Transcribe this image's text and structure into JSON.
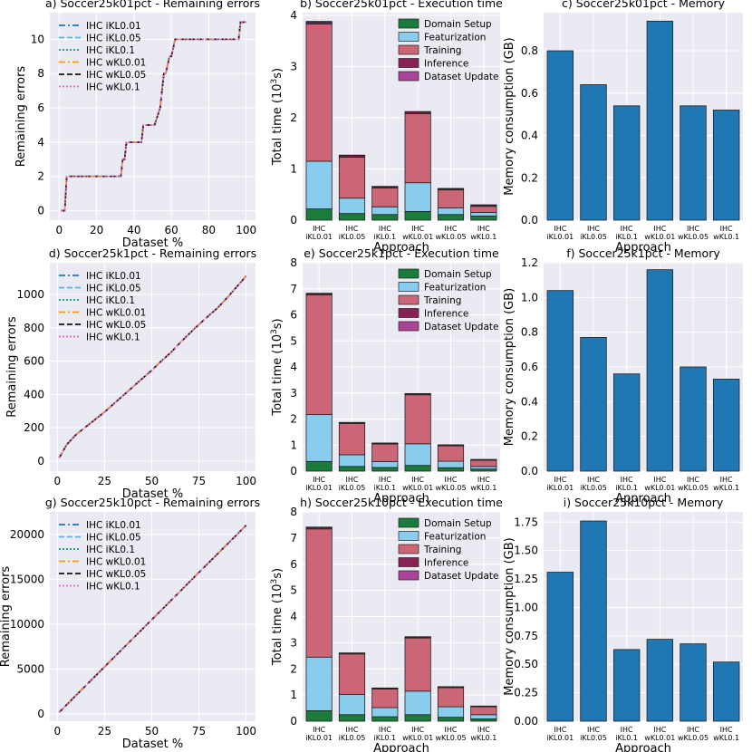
{
  "colors": {
    "panel_bg": "#EAEAF2",
    "grid": "#FFFFFF",
    "bar_memory": "#1F77B4",
    "stack": [
      "#1A7B3A",
      "#88CCEE",
      "#CC6677",
      "#882255",
      "#AA4499"
    ],
    "lines": [
      "#1F77B4",
      "#56B4E9",
      "#009E73",
      "#FF9900",
      "#111111",
      "#EE66BB"
    ]
  },
  "line_series_names": [
    "IHC iKL0.01",
    "IHC iKL0.05",
    "IHC iKL0.1",
    "IHC wKL0.01",
    "IHC wKL0.05",
    "IHC wKL0.1"
  ],
  "stack_legend": [
    "Domain Setup",
    "Featurization",
    "Training",
    "Inference",
    "Dataset Update"
  ],
  "approach_labels": [
    [
      "IHC",
      "iKL0.01"
    ],
    [
      "IHC",
      "iKL0.05"
    ],
    [
      "IHC",
      "iKL0.1"
    ],
    [
      "IHC",
      "wKL0.01"
    ],
    [
      "IHC",
      "wKL0.05"
    ],
    [
      "IHC",
      "wKL0.1"
    ]
  ],
  "chart_data": [
    {
      "type": "line",
      "title": "a) Soccer25k01pct - Remaining errors",
      "xlabel": "Dataset %",
      "ylabel": "Remaining errors",
      "xlim": [
        -5,
        105
      ],
      "ylim": [
        -0.55,
        11.55
      ],
      "xticks": [
        0,
        20,
        40,
        60,
        80,
        100
      ],
      "yticks": [
        0,
        2,
        4,
        6,
        8,
        10
      ],
      "x": [
        1,
        3,
        4,
        32,
        33,
        34,
        35,
        36,
        44,
        45,
        50,
        51,
        54,
        55,
        56,
        57,
        59,
        60,
        61,
        62,
        96,
        97,
        100
      ],
      "y": [
        0,
        0,
        2,
        2,
        2,
        3,
        3,
        4,
        4,
        5,
        5,
        5,
        6,
        7,
        8,
        8,
        9,
        9,
        9.5,
        10,
        10,
        11,
        11
      ]
    },
    {
      "type": "line",
      "title": "d) Soccer25k1pct - Remaining errors",
      "xlabel": "Dataset %",
      "ylabel": "Remaining errors",
      "xlim": [
        -4,
        105
      ],
      "ylim": [
        -60,
        1190
      ],
      "xticks": [
        0,
        25,
        50,
        75,
        100
      ],
      "yticks": [
        0,
        200,
        400,
        600,
        800,
        1000
      ],
      "x": [
        1,
        5,
        10,
        15,
        20,
        25,
        30,
        35,
        40,
        45,
        50,
        55,
        60,
        65,
        70,
        75,
        80,
        85,
        90,
        95,
        100
      ],
      "y": [
        20,
        100,
        160,
        205,
        250,
        295,
        345,
        395,
        445,
        495,
        545,
        600,
        650,
        710,
        765,
        820,
        870,
        920,
        980,
        1045,
        1110
      ]
    },
    {
      "type": "line",
      "title": "g) Soccer25k10pct - Remaining errors",
      "xlabel": "Dataset %",
      "ylabel": "Remaining errors",
      "xlim": [
        -4,
        105
      ],
      "ylim": [
        -800,
        22500
      ],
      "xticks": [
        0,
        25,
        50,
        75,
        100
      ],
      "yticks": [
        0,
        5000,
        10000,
        15000,
        20000
      ],
      "x": [
        1,
        10,
        20,
        30,
        40,
        50,
        60,
        70,
        80,
        90,
        100
      ],
      "y": [
        200,
        2100,
        4200,
        6300,
        8400,
        10500,
        12600,
        14700,
        16800,
        18900,
        21000
      ]
    },
    {
      "type": "bar",
      "stacked": true,
      "title": "b) Soccer25k01pct - Execution time",
      "xlabel": "Approach",
      "ylabel": "Total time (10³s)",
      "ylim": [
        0,
        4.05
      ],
      "yticks": [
        0,
        1,
        2,
        3,
        4
      ],
      "series": [
        {
          "name": "Domain Setup",
          "values": [
            0.22,
            0.13,
            0.11,
            0.17,
            0.11,
            0.08
          ]
        },
        {
          "name": "Featurization",
          "values": [
            0.93,
            0.3,
            0.15,
            0.56,
            0.13,
            0.07
          ]
        },
        {
          "name": "Training",
          "values": [
            2.68,
            0.8,
            0.37,
            1.35,
            0.35,
            0.12
          ]
        },
        {
          "name": "Inference",
          "values": [
            0.04,
            0.03,
            0.02,
            0.03,
            0.02,
            0.02
          ]
        },
        {
          "name": "Dataset Update",
          "values": [
            0.01,
            0.01,
            0.01,
            0.01,
            0.01,
            0.01
          ]
        }
      ]
    },
    {
      "type": "bar",
      "stacked": true,
      "title": "e) Soccer25k1pct - Execution time",
      "xlabel": "Approach",
      "ylabel": "Total time (10³s)",
      "ylim": [
        0,
        8
      ],
      "yticks": [
        0,
        1,
        2,
        3,
        4,
        5,
        6,
        7,
        8
      ],
      "series": [
        {
          "name": "Domain Setup",
          "values": [
            0.37,
            0.18,
            0.14,
            0.22,
            0.13,
            0.08
          ]
        },
        {
          "name": "Featurization",
          "values": [
            1.8,
            0.45,
            0.23,
            0.83,
            0.25,
            0.1
          ]
        },
        {
          "name": "Training",
          "values": [
            4.6,
            1.2,
            0.67,
            1.88,
            0.59,
            0.24
          ]
        },
        {
          "name": "Inference",
          "values": [
            0.05,
            0.03,
            0.03,
            0.04,
            0.03,
            0.02
          ]
        },
        {
          "name": "Dataset Update",
          "values": [
            0.01,
            0.01,
            0.01,
            0.01,
            0.01,
            0.01
          ]
        }
      ]
    },
    {
      "type": "bar",
      "stacked": true,
      "title": "h) Soccer25k10pct - Execution time",
      "xlabel": "Approach",
      "ylabel": "Total time (10³s)",
      "ylim": [
        0,
        8
      ],
      "yticks": [
        0,
        1,
        2,
        3,
        4,
        5,
        6,
        7,
        8
      ],
      "series": [
        {
          "name": "Domain Setup",
          "values": [
            0.4,
            0.25,
            0.17,
            0.25,
            0.15,
            0.09
          ]
        },
        {
          "name": "Featurization",
          "values": [
            2.05,
            0.77,
            0.35,
            0.9,
            0.4,
            0.16
          ]
        },
        {
          "name": "Training",
          "values": [
            4.9,
            1.55,
            0.71,
            2.03,
            0.73,
            0.3
          ]
        },
        {
          "name": "Inference",
          "values": [
            0.06,
            0.03,
            0.03,
            0.04,
            0.03,
            0.02
          ]
        },
        {
          "name": "Dataset Update",
          "values": [
            0.01,
            0.01,
            0.01,
            0.01,
            0.01,
            0.01
          ]
        }
      ]
    },
    {
      "type": "bar",
      "title": "c) Soccer25k01pct - Memory",
      "xlabel": "Approach",
      "ylabel": "Memory consumption (GB)",
      "ylim": [
        0,
        0.98
      ],
      "yticks": [
        0.0,
        0.2,
        0.4,
        0.6,
        0.8
      ],
      "tick_decimals": 1,
      "values": [
        0.8,
        0.64,
        0.54,
        0.94,
        0.54,
        0.52
      ]
    },
    {
      "type": "bar",
      "title": "f) Soccer25k1pct - Memory",
      "xlabel": "Approach",
      "ylabel": "Memory consumption (GB)",
      "ylim": [
        0,
        1.2
      ],
      "yticks": [
        0.0,
        0.2,
        0.4,
        0.6,
        0.8,
        1.0,
        1.2
      ],
      "tick_decimals": 1,
      "values": [
        1.04,
        0.77,
        0.56,
        1.16,
        0.6,
        0.53
      ]
    },
    {
      "type": "bar",
      "title": "i) Soccer25k10pct - Memory",
      "xlabel": "Approach",
      "ylabel": "Memory consumption (GB)",
      "ylim": [
        0,
        1.84
      ],
      "yticks": [
        0.0,
        0.25,
        0.5,
        0.75,
        1.0,
        1.25,
        1.5,
        1.75
      ],
      "tick_decimals": 2,
      "values": [
        1.31,
        1.76,
        0.63,
        0.72,
        0.68,
        0.52
      ]
    }
  ]
}
